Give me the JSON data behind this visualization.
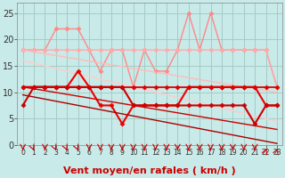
{
  "title": "",
  "xlabel": "Vent moyen/en rafales ( km/h )",
  "background_color": "#c8eae8",
  "grid_color": "#a0c8c0",
  "series": [
    {
      "name": "pink_spiky_top",
      "color": "#ff8888",
      "linewidth": 1.0,
      "marker": "D",
      "markersize": 2.5,
      "markerfacecolor": "#ff8888",
      "y": [
        18,
        18,
        18,
        22,
        22,
        22,
        18,
        14,
        18,
        18,
        11,
        18,
        14,
        14,
        18,
        25,
        18,
        25,
        18,
        18,
        18,
        18,
        18,
        11
      ]
    },
    {
      "name": "pink_flat_top",
      "color": "#ffaaaa",
      "linewidth": 1.0,
      "marker": "D",
      "markersize": 2.5,
      "markerfacecolor": "#ffaaaa",
      "y": [
        18,
        18,
        18,
        18,
        18,
        18,
        18,
        18,
        18,
        18,
        18,
        18,
        18,
        18,
        18,
        18,
        18,
        18,
        18,
        18,
        18,
        18,
        18,
        11
      ]
    },
    {
      "name": "pink_diag_upper",
      "color": "#ffbbbb",
      "linewidth": 1.0,
      "marker": null,
      "y": [
        18,
        17.65,
        17.3,
        16.95,
        16.6,
        16.25,
        15.9,
        15.55,
        15.2,
        14.85,
        14.5,
        14.15,
        13.8,
        13.45,
        13.1,
        12.75,
        12.4,
        12.05,
        11.7,
        11.35,
        11.0,
        10.65,
        10.3,
        9.95
      ]
    },
    {
      "name": "pink_diag_lower",
      "color": "#ffcccc",
      "linewidth": 1.0,
      "marker": null,
      "y": [
        16,
        15.5,
        15.0,
        14.5,
        14.0,
        13.5,
        13.0,
        12.5,
        12.0,
        11.5,
        11.0,
        10.5,
        10.0,
        9.5,
        9.0,
        8.5,
        8.0,
        7.5,
        7.0,
        6.5,
        6.0,
        5.5,
        5.0,
        4.5
      ]
    },
    {
      "name": "red_flat_upper",
      "color": "#ee0000",
      "linewidth": 1.5,
      "marker": "D",
      "markersize": 2.5,
      "markerfacecolor": "#ee0000",
      "y": [
        11,
        11,
        11,
        11,
        11,
        14,
        11,
        7.5,
        7.5,
        4,
        7.5,
        7.5,
        7.5,
        7.5,
        7.5,
        11,
        11,
        11,
        11,
        11,
        11,
        11,
        7.5,
        7.5
      ]
    },
    {
      "name": "red_flat_line",
      "color": "#dd0000",
      "linewidth": 1.3,
      "marker": "D",
      "markersize": 2.5,
      "markerfacecolor": "#dd0000",
      "y": [
        11,
        11,
        11,
        11,
        11,
        11,
        11,
        11,
        11,
        11,
        11,
        11,
        11,
        11,
        11,
        11,
        11,
        11,
        11,
        11,
        11,
        11,
        11,
        11
      ]
    },
    {
      "name": "red_diag_mid",
      "color": "#cc0000",
      "linewidth": 1.0,
      "marker": null,
      "y": [
        11,
        10.65,
        10.3,
        9.95,
        9.6,
        9.25,
        8.9,
        8.55,
        8.2,
        7.85,
        7.5,
        7.15,
        6.8,
        6.45,
        6.1,
        5.75,
        5.4,
        5.05,
        4.7,
        4.35,
        4.0,
        3.65,
        3.3,
        2.95
      ]
    },
    {
      "name": "dark_red_bottom_line",
      "color": "#cc0000",
      "linewidth": 1.5,
      "marker": "D",
      "markersize": 2.5,
      "markerfacecolor": "#cc0000",
      "y": [
        7.5,
        11,
        11,
        11,
        11,
        11,
        11,
        11,
        11,
        11,
        7.5,
        7.5,
        7.5,
        7.5,
        7.5,
        7.5,
        7.5,
        7.5,
        7.5,
        7.5,
        7.5,
        4,
        7.5,
        7.5
      ]
    },
    {
      "name": "dark_red_diag_lower",
      "color": "#aa0000",
      "linewidth": 1.0,
      "marker": null,
      "y": [
        9.5,
        9.1,
        8.7,
        8.3,
        7.9,
        7.5,
        7.1,
        6.7,
        6.3,
        5.9,
        5.5,
        5.1,
        4.7,
        4.3,
        3.9,
        3.5,
        3.1,
        2.7,
        2.3,
        1.9,
        1.5,
        1.1,
        0.7,
        0.3
      ]
    }
  ],
  "arrow_directions": [
    0,
    1,
    0,
    1,
    1,
    1,
    0,
    0,
    0,
    0,
    0,
    0,
    0,
    0,
    0,
    0,
    0,
    0,
    0,
    0,
    0,
    0,
    2,
    2
  ],
  "ylim": [
    0,
    27
  ],
  "yticks": [
    0,
    5,
    10,
    15,
    20,
    25
  ],
  "tick_fontsize": 7,
  "xlabel_fontsize": 8
}
